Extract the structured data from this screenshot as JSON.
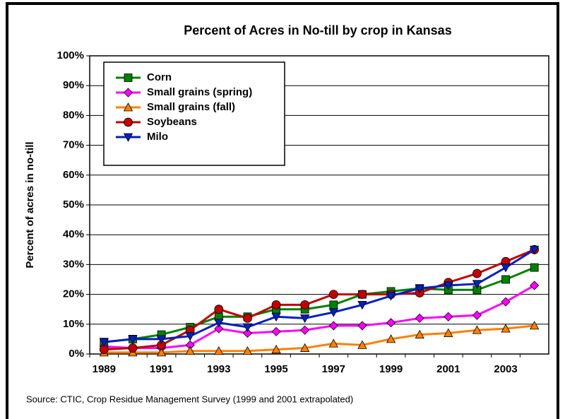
{
  "chart_data": {
    "type": "line",
    "title": "Percent of Acres in No-till by crop in Kansas",
    "y_label": "Percent of acres in no-till",
    "source": "Source:  CTIC, Crop Residue Management Survey (1999 and 2001 extrapolated)",
    "categories": [
      "1989",
      null,
      "1991",
      null,
      "1993",
      null,
      "1995",
      null,
      "1997",
      null,
      "1999",
      null,
      "2001",
      null,
      "2003",
      null
    ],
    "ylim": [
      0,
      100
    ],
    "yticks": [
      {
        "value": 0,
        "label": "0%"
      },
      {
        "value": 10,
        "label": "10%"
      },
      {
        "value": 20,
        "label": "20%"
      },
      {
        "value": 30,
        "label": "30%"
      },
      {
        "value": 40,
        "label": "40%"
      },
      {
        "value": 50,
        "label": "50%"
      },
      {
        "value": 60,
        "label": "60%"
      },
      {
        "value": 70,
        "label": "70%"
      },
      {
        "value": 80,
        "label": "80%"
      },
      {
        "value": 90,
        "label": "90%"
      },
      {
        "value": 100,
        "label": "100%"
      }
    ],
    "grid": true,
    "legend": "upper-left",
    "series": [
      {
        "name": "Corn",
        "color": "#008000",
        "marker": "square",
        "values": [
          4,
          5,
          6.5,
          9,
          12.5,
          12.5,
          15,
          15,
          16.5,
          20,
          21,
          22,
          21.5,
          21.5,
          25,
          29
        ]
      },
      {
        "name": "Small grains (spring)",
        "color": "#ff00ff",
        "marker": "diamond",
        "values": [
          2.5,
          2,
          2,
          3,
          8.5,
          7,
          7.5,
          8,
          9.5,
          9.5,
          10.5,
          12,
          12.5,
          13,
          17.5,
          23
        ]
      },
      {
        "name": "Small grains (fall)",
        "color": "#ff8000",
        "marker": "triangle",
        "values": [
          0.5,
          0.5,
          0.5,
          1,
          1,
          1,
          1.5,
          2,
          3.5,
          3,
          5,
          6.5,
          7,
          8,
          8.5,
          9.5
        ]
      },
      {
        "name": "Soybeans",
        "color": "#c00000",
        "marker": "circle",
        "values": [
          1.5,
          2,
          3,
          8,
          15,
          12,
          16.5,
          16.5,
          20,
          20,
          20,
          20.5,
          24,
          27,
          31,
          35
        ]
      },
      {
        "name": "Milo",
        "color": "#0020c0",
        "marker": "triangle-down",
        "values": [
          4,
          5,
          5,
          6,
          10.5,
          9,
          12.5,
          12,
          14,
          16.5,
          19.5,
          22,
          23,
          23.5,
          29,
          35
        ]
      }
    ]
  }
}
